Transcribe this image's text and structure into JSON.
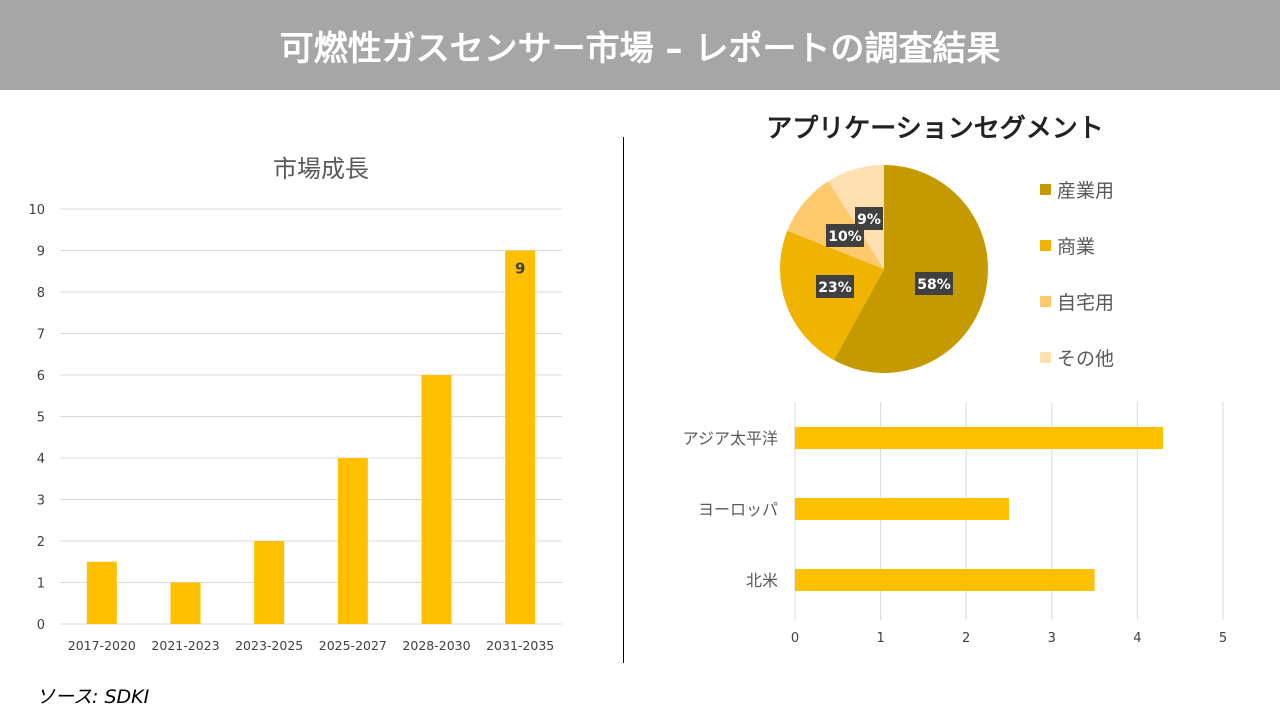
{
  "banner": {
    "title": "可燃性ガスセンサー市場 – レポートの調査結果"
  },
  "source": "ソース: SDKI",
  "chart_data": [
    {
      "type": "bar",
      "title": "市場成長",
      "categories": [
        "2017-2020",
        "2021-2023",
        "2023-2025",
        "2025-2027",
        "2028-2030",
        "2031-2035"
      ],
      "values": [
        1.5,
        1,
        2,
        4,
        6,
        9
      ],
      "data_labels": {
        "2031-2035": "9"
      },
      "ylim": [
        0,
        10
      ],
      "yticks": [
        0,
        1,
        2,
        3,
        4,
        5,
        6,
        7,
        8,
        9,
        10
      ],
      "grid": true,
      "color": "#ffc000"
    },
    {
      "type": "pie",
      "title": "アプリケーションセグメント",
      "labels": [
        "産業用",
        "商業",
        "自宅用",
        "その他"
      ],
      "values": [
        58,
        23,
        10,
        9
      ],
      "data_labels": [
        "58%",
        "23%",
        "10%",
        "9%"
      ],
      "colors": [
        "#c59a00",
        "#f0b400",
        "#fdc96a",
        "#fde0b0"
      ],
      "legend": "right"
    },
    {
      "type": "bar",
      "orientation": "horizontal",
      "categories": [
        "アジア太平洋",
        "ヨーロッパ",
        "北米"
      ],
      "values": [
        4.3,
        2.5,
        3.5
      ],
      "xlim": [
        0,
        5
      ],
      "xticks": [
        0,
        1,
        2,
        3,
        4,
        5
      ],
      "grid": true,
      "color": "#ffc000"
    }
  ]
}
